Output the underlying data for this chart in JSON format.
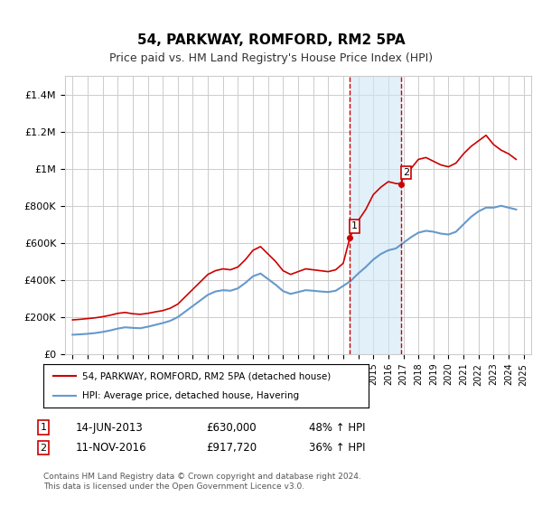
{
  "title": "54, PARKWAY, ROMFORD, RM2 5PA",
  "subtitle": "Price paid vs. HM Land Registry's House Price Index (HPI)",
  "ylabel": "",
  "xlabel": "",
  "ylim": [
    0,
    1500000
  ],
  "yticks": [
    0,
    200000,
    400000,
    600000,
    800000,
    1000000,
    1200000,
    1400000
  ],
  "ytick_labels": [
    "£0",
    "£200K",
    "£400K",
    "£600K",
    "£800K",
    "£1M",
    "£1.2M",
    "£1.4M"
  ],
  "background_color": "#ffffff",
  "grid_color": "#cccccc",
  "sale1_date_num": 2013.45,
  "sale1_label": "1",
  "sale1_price": 630000,
  "sale1_text": "14-JUN-2013",
  "sale1_pct": "48% ↑ HPI",
  "sale2_date_num": 2016.87,
  "sale2_label": "2",
  "sale2_price": 917720,
  "sale2_text": "11-NOV-2016",
  "sale2_pct": "36% ↑ HPI",
  "shade_color": "#d0e8f5",
  "line1_color": "#cc0000",
  "line2_color": "#6699cc",
  "legend1_label": "54, PARKWAY, ROMFORD, RM2 5PA (detached house)",
  "legend2_label": "HPI: Average price, detached house, Havering",
  "footnote": "Contains HM Land Registry data © Crown copyright and database right 2024.\nThis data is licensed under the Open Government Licence v3.0.",
  "red_line_x": [
    1995.0,
    1995.5,
    1996.0,
    1996.5,
    1997.0,
    1997.5,
    1998.0,
    1998.5,
    1999.0,
    1999.5,
    2000.0,
    2000.5,
    2001.0,
    2001.5,
    2002.0,
    2002.5,
    2003.0,
    2003.5,
    2004.0,
    2004.5,
    2005.0,
    2005.5,
    2006.0,
    2006.5,
    2007.0,
    2007.5,
    2008.0,
    2008.5,
    2009.0,
    2009.5,
    2010.0,
    2010.5,
    2011.0,
    2011.5,
    2012.0,
    2012.5,
    2013.0,
    2013.45,
    2013.5,
    2014.0,
    2014.5,
    2015.0,
    2015.5,
    2016.0,
    2016.5,
    2016.87,
    2017.0,
    2017.5,
    2018.0,
    2018.5,
    2019.0,
    2019.5,
    2020.0,
    2020.5,
    2021.0,
    2021.5,
    2022.0,
    2022.5,
    2023.0,
    2023.5,
    2024.0,
    2024.5
  ],
  "red_line_y": [
    185000,
    188000,
    192000,
    196000,
    202000,
    210000,
    220000,
    225000,
    218000,
    215000,
    220000,
    228000,
    235000,
    248000,
    270000,
    310000,
    350000,
    390000,
    430000,
    450000,
    460000,
    455000,
    470000,
    510000,
    560000,
    580000,
    540000,
    500000,
    450000,
    430000,
    445000,
    460000,
    455000,
    450000,
    445000,
    455000,
    490000,
    630000,
    640000,
    720000,
    780000,
    860000,
    900000,
    930000,
    920000,
    917720,
    960000,
    1000000,
    1050000,
    1060000,
    1040000,
    1020000,
    1010000,
    1030000,
    1080000,
    1120000,
    1150000,
    1180000,
    1130000,
    1100000,
    1080000,
    1050000
  ],
  "blue_line_x": [
    1995.0,
    1995.5,
    1996.0,
    1996.5,
    1997.0,
    1997.5,
    1998.0,
    1998.5,
    1999.0,
    1999.5,
    2000.0,
    2000.5,
    2001.0,
    2001.5,
    2002.0,
    2002.5,
    2003.0,
    2003.5,
    2004.0,
    2004.5,
    2005.0,
    2005.5,
    2006.0,
    2006.5,
    2007.0,
    2007.5,
    2008.0,
    2008.5,
    2009.0,
    2009.5,
    2010.0,
    2010.5,
    2011.0,
    2011.5,
    2012.0,
    2012.5,
    2013.0,
    2013.5,
    2014.0,
    2014.5,
    2015.0,
    2015.5,
    2016.0,
    2016.5,
    2017.0,
    2017.5,
    2018.0,
    2018.5,
    2019.0,
    2019.5,
    2020.0,
    2020.5,
    2021.0,
    2021.5,
    2022.0,
    2022.5,
    2023.0,
    2023.5,
    2024.0,
    2024.5
  ],
  "blue_line_y": [
    105000,
    107000,
    110000,
    114000,
    120000,
    128000,
    138000,
    145000,
    142000,
    140000,
    148000,
    158000,
    168000,
    180000,
    200000,
    230000,
    260000,
    290000,
    320000,
    338000,
    345000,
    342000,
    355000,
    385000,
    420000,
    435000,
    405000,
    375000,
    340000,
    325000,
    335000,
    345000,
    342000,
    338000,
    335000,
    342000,
    368000,
    395000,
    435000,
    470000,
    510000,
    540000,
    560000,
    570000,
    600000,
    630000,
    655000,
    665000,
    660000,
    650000,
    645000,
    660000,
    700000,
    740000,
    770000,
    790000,
    790000,
    800000,
    790000,
    780000
  ],
  "xlim_left": 1994.5,
  "xlim_right": 2025.5,
  "xticks": [
    1995,
    1996,
    1997,
    1998,
    1999,
    2000,
    2001,
    2002,
    2003,
    2004,
    2005,
    2006,
    2007,
    2008,
    2009,
    2010,
    2011,
    2012,
    2013,
    2014,
    2015,
    2016,
    2017,
    2018,
    2019,
    2020,
    2021,
    2022,
    2023,
    2024,
    2025
  ]
}
